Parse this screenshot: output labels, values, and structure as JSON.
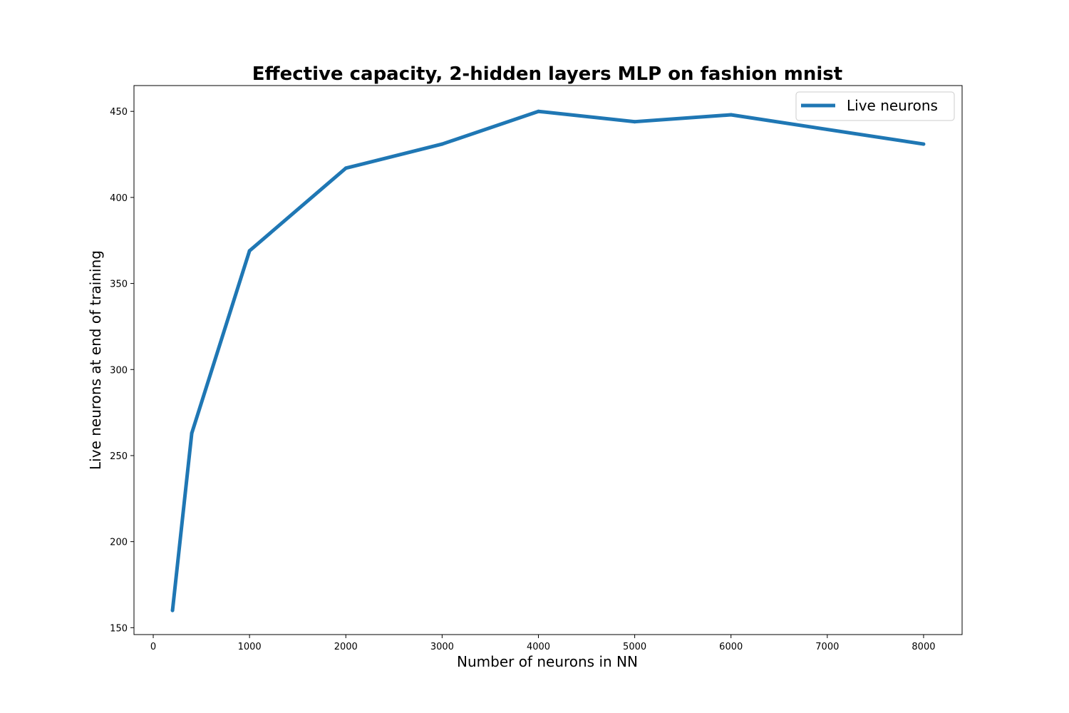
{
  "chart_data": {
    "type": "line",
    "title": "Effective capacity, 2-hidden layers MLP on fashion mnist",
    "xlabel": "Number of neurons in NN",
    "ylabel": "Live neurons at end of training",
    "xlim": [
      -200,
      8400
    ],
    "ylim": [
      146,
      465
    ],
    "xticks": [
      0,
      1000,
      2000,
      3000,
      4000,
      5000,
      6000,
      7000,
      8000
    ],
    "yticks": [
      150,
      200,
      250,
      300,
      350,
      400,
      450
    ],
    "grid": false,
    "legend_position": "top-right",
    "series": [
      {
        "name": "Live neurons",
        "color": "#1f77b4",
        "x": [
          200,
          400,
          1000,
          2000,
          3000,
          4000,
          5000,
          6000,
          8000
        ],
        "y": [
          160,
          263,
          369,
          417,
          431,
          450,
          444,
          448,
          431
        ]
      }
    ]
  }
}
